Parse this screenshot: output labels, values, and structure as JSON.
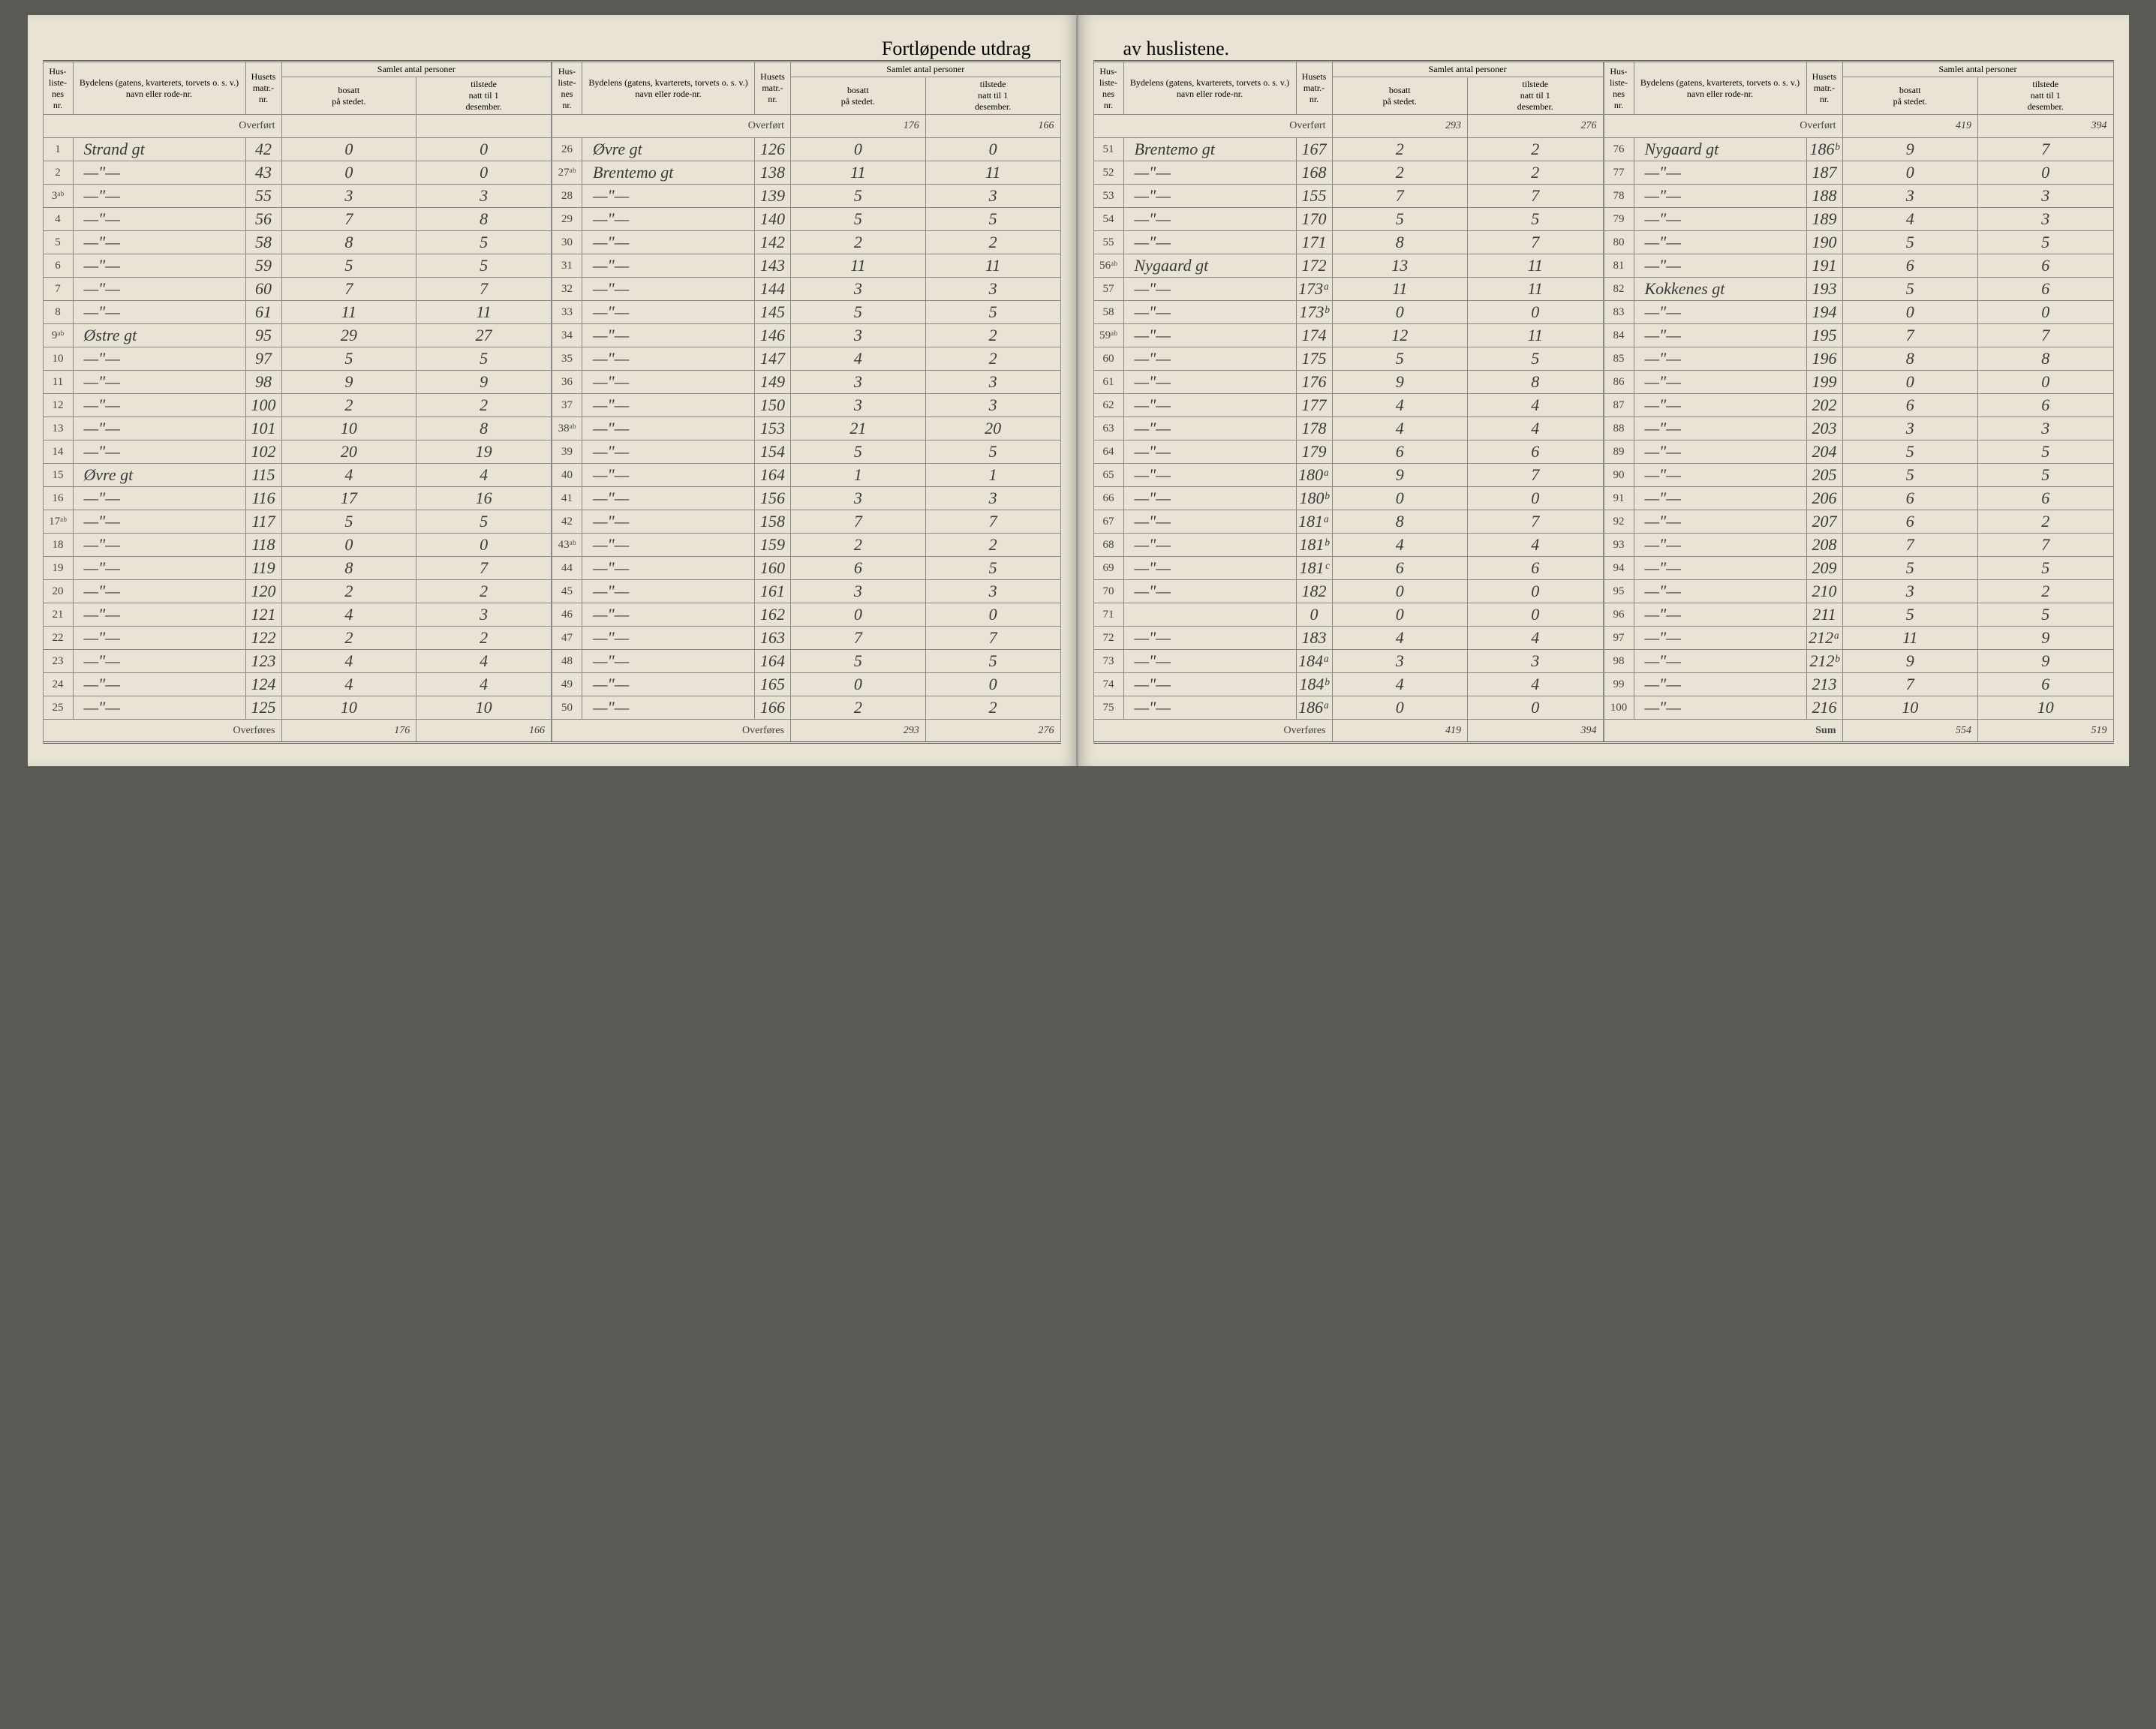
{
  "title_left": "Fortløpende utdrag",
  "title_right": "av huslistene.",
  "headers": {
    "hus_nr": "Hus-\nliste-\nnes\nnr.",
    "bydel": "Bydelens (gatens, kvarterets, torvets o. s. v.) navn eller rode-nr.",
    "matr": "Husets\nmatr.-\nnr.",
    "samlet": "Samlet antal personer",
    "bosatt": "bosatt\npå stedet.",
    "tilstede": "tilstede\nnatt til 1\ndesember."
  },
  "overfort": "Overført",
  "overfores": "Overføres",
  "sum": "Sum",
  "ditto": "— \" —",
  "columns": [
    {
      "overfort_vals": [
        "",
        "",
        ""
      ],
      "rows": [
        {
          "nr": "1",
          "name": "Strand gt",
          "matr": "42",
          "b": "0",
          "t": "0"
        },
        {
          "nr": "2",
          "name": "—\"—",
          "matr": "43",
          "b": "0",
          "t": "0"
        },
        {
          "nr": "3ᵃᵇ",
          "name": "—\"—",
          "matr": "55",
          "b": "3",
          "t": "3"
        },
        {
          "nr": "4",
          "name": "—\"—",
          "matr": "56",
          "b": "7",
          "t": "8"
        },
        {
          "nr": "5",
          "name": "—\"—",
          "matr": "58",
          "b": "8",
          "t": "5"
        },
        {
          "nr": "6",
          "name": "—\"—",
          "matr": "59",
          "b": "5",
          "t": "5"
        },
        {
          "nr": "7",
          "name": "—\"—",
          "matr": "60",
          "b": "7",
          "t": "7"
        },
        {
          "nr": "8",
          "name": "—\"—",
          "matr": "61",
          "b": "11",
          "t": "11"
        },
        {
          "nr": "9ᵃᵇ",
          "name": "Østre gt",
          "matr": "95",
          "b": "29",
          "t": "27"
        },
        {
          "nr": "10",
          "name": "—\"—",
          "matr": "97",
          "b": "5",
          "t": "5"
        },
        {
          "nr": "11",
          "name": "—\"—",
          "matr": "98",
          "b": "9",
          "t": "9"
        },
        {
          "nr": "12",
          "name": "—\"—",
          "matr": "100",
          "b": "2",
          "t": "2"
        },
        {
          "nr": "13",
          "name": "—\"—",
          "matr": "101",
          "b": "10",
          "t": "8"
        },
        {
          "nr": "14",
          "name": "—\"—",
          "matr": "102",
          "b": "20",
          "t": "19"
        },
        {
          "nr": "15",
          "name": "Øvre gt",
          "matr": "115",
          "b": "4",
          "t": "4"
        },
        {
          "nr": "16",
          "name": "—\"—",
          "matr": "116",
          "b": "17",
          "t": "16"
        },
        {
          "nr": "17ᵃᵇ",
          "name": "—\"—",
          "matr": "117",
          "b": "5",
          "t": "5"
        },
        {
          "nr": "18",
          "name": "—\"—",
          "matr": "118",
          "b": "0",
          "t": "0"
        },
        {
          "nr": "19",
          "name": "—\"—",
          "matr": "119",
          "b": "8",
          "t": "7"
        },
        {
          "nr": "20",
          "name": "—\"—",
          "matr": "120",
          "b": "2",
          "t": "2"
        },
        {
          "nr": "21",
          "name": "—\"—",
          "matr": "121",
          "b": "4",
          "t": "3"
        },
        {
          "nr": "22",
          "name": "—\"—",
          "matr": "122",
          "b": "2",
          "t": "2"
        },
        {
          "nr": "23",
          "name": "—\"—",
          "matr": "123",
          "b": "4",
          "t": "4"
        },
        {
          "nr": "24",
          "name": "—\"—",
          "matr": "124",
          "b": "4",
          "t": "4"
        },
        {
          "nr": "25",
          "name": "—\"—",
          "matr": "125",
          "b": "10",
          "t": "10"
        }
      ],
      "overfores_vals": [
        "",
        "176",
        "166"
      ]
    },
    {
      "overfort_vals": [
        "",
        "176",
        "166"
      ],
      "rows": [
        {
          "nr": "26",
          "name": "Øvre gt",
          "matr": "126",
          "b": "0",
          "t": "0"
        },
        {
          "nr": "27ᵃᵇ",
          "name": "Brentemo gt",
          "matr": "138",
          "b": "11",
          "t": "11"
        },
        {
          "nr": "28",
          "name": "—\"—",
          "matr": "139",
          "b": "5",
          "t": "3"
        },
        {
          "nr": "29",
          "name": "—\"—",
          "matr": "140",
          "b": "5",
          "t": "5"
        },
        {
          "nr": "30",
          "name": "—\"—",
          "matr": "142",
          "b": "2",
          "t": "2"
        },
        {
          "nr": "31",
          "name": "—\"—",
          "matr": "143",
          "b": "11",
          "t": "11"
        },
        {
          "nr": "32",
          "name": "—\"—",
          "matr": "144",
          "b": "3",
          "t": "3"
        },
        {
          "nr": "33",
          "name": "—\"—",
          "matr": "145",
          "b": "5",
          "t": "5"
        },
        {
          "nr": "34",
          "name": "—\"—",
          "matr": "146",
          "b": "3",
          "t": "2"
        },
        {
          "nr": "35",
          "name": "—\"—",
          "matr": "147",
          "b": "4",
          "t": "2"
        },
        {
          "nr": "36",
          "name": "—\"—",
          "matr": "149",
          "b": "3",
          "t": "3"
        },
        {
          "nr": "37",
          "name": "—\"—",
          "matr": "150",
          "b": "3",
          "t": "3"
        },
        {
          "nr": "38ᵃᵇ",
          "name": "—\"—",
          "matr": "153",
          "b": "21",
          "t": "20"
        },
        {
          "nr": "39",
          "name": "—\"—",
          "matr": "154",
          "b": "5",
          "t": "5"
        },
        {
          "nr": "40",
          "name": "—\"—",
          "matr": "164",
          "b": "1",
          "t": "1"
        },
        {
          "nr": "41",
          "name": "—\"—",
          "matr": "156",
          "b": "3",
          "t": "3"
        },
        {
          "nr": "42",
          "name": "—\"—",
          "matr": "158",
          "b": "7",
          "t": "7"
        },
        {
          "nr": "43ᵃᵇ",
          "name": "—\"—",
          "matr": "159",
          "b": "2",
          "t": "2"
        },
        {
          "nr": "44",
          "name": "—\"—",
          "matr": "160",
          "b": "6",
          "t": "5"
        },
        {
          "nr": "45",
          "name": "—\"—",
          "matr": "161",
          "b": "3",
          "t": "3"
        },
        {
          "nr": "46",
          "name": "—\"—",
          "matr": "162",
          "b": "0",
          "t": "0"
        },
        {
          "nr": "47",
          "name": "—\"—",
          "matr": "163",
          "b": "7",
          "t": "7"
        },
        {
          "nr": "48",
          "name": "—\"—",
          "matr": "164",
          "b": "5",
          "t": "5"
        },
        {
          "nr": "49",
          "name": "—\"—",
          "matr": "165",
          "b": "0",
          "t": "0"
        },
        {
          "nr": "50",
          "name": "—\"—",
          "matr": "166",
          "b": "2",
          "t": "2"
        }
      ],
      "overfores_vals": [
        "",
        "293",
        "276"
      ]
    },
    {
      "overfort_vals": [
        "",
        "293",
        "276"
      ],
      "rows": [
        {
          "nr": "51",
          "name": "Brentemo gt",
          "matr": "167",
          "b": "2",
          "t": "2"
        },
        {
          "nr": "52",
          "name": "—\"—",
          "matr": "168",
          "b": "2",
          "t": "2"
        },
        {
          "nr": "53",
          "name": "—\"—",
          "matr": "155",
          "b": "7",
          "t": "7"
        },
        {
          "nr": "54",
          "name": "—\"—",
          "matr": "170",
          "b": "5",
          "t": "5"
        },
        {
          "nr": "55",
          "name": "—\"—",
          "matr": "171",
          "b": "8",
          "t": "7"
        },
        {
          "nr": "56ᵃᵇ",
          "name": "Nygaard gt",
          "matr": "172",
          "b": "13",
          "t": "11"
        },
        {
          "nr": "57",
          "name": "—\"—",
          "matr": "173ᵃ",
          "b": "11",
          "t": "11"
        },
        {
          "nr": "58",
          "name": "—\"—",
          "matr": "173ᵇ",
          "b": "0",
          "t": "0"
        },
        {
          "nr": "59ᵃᵇ",
          "name": "—\"—",
          "matr": "174",
          "b": "12",
          "t": "11"
        },
        {
          "nr": "60",
          "name": "—\"—",
          "matr": "175",
          "b": "5",
          "t": "5"
        },
        {
          "nr": "61",
          "name": "—\"—",
          "matr": "176",
          "b": "9",
          "t": "8"
        },
        {
          "nr": "62",
          "name": "—\"—",
          "matr": "177",
          "b": "4",
          "t": "4"
        },
        {
          "nr": "63",
          "name": "—\"—",
          "matr": "178",
          "b": "4",
          "t": "4"
        },
        {
          "nr": "64",
          "name": "—\"—",
          "matr": "179",
          "b": "6",
          "t": "6"
        },
        {
          "nr": "65",
          "name": "—\"—",
          "matr": "180ᵃ",
          "b": "9",
          "t": "7"
        },
        {
          "nr": "66",
          "name": "—\"—",
          "matr": "180ᵇ",
          "b": "0",
          "t": "0"
        },
        {
          "nr": "67",
          "name": "—\"—",
          "matr": "181ᵃ",
          "b": "8",
          "t": "7"
        },
        {
          "nr": "68",
          "name": "—\"—",
          "matr": "181ᵇ",
          "b": "4",
          "t": "4"
        },
        {
          "nr": "69",
          "name": "—\"—",
          "matr": "181ᶜ",
          "b": "6",
          "t": "6"
        },
        {
          "nr": "70",
          "name": "—\"—",
          "matr": "182",
          "b": "0",
          "t": "0"
        },
        {
          "nr": "71",
          "name": "",
          "matr": "0",
          "b": "0",
          "t": "0"
        },
        {
          "nr": "72",
          "name": "—\"—",
          "matr": "183",
          "b": "4",
          "t": "4"
        },
        {
          "nr": "73",
          "name": "—\"—",
          "matr": "184ᵃ",
          "b": "3",
          "t": "3"
        },
        {
          "nr": "74",
          "name": "—\"—",
          "matr": "184ᵇ",
          "b": "4",
          "t": "4"
        },
        {
          "nr": "75",
          "name": "—\"—",
          "matr": "186ᵃ",
          "b": "0",
          "t": "0"
        }
      ],
      "overfores_vals": [
        "",
        "419",
        "394"
      ]
    },
    {
      "overfort_vals": [
        "",
        "419",
        "394"
      ],
      "rows": [
        {
          "nr": "76",
          "name": "Nygaard gt",
          "matr": "186ᵇ",
          "b": "9",
          "t": "7"
        },
        {
          "nr": "77",
          "name": "—\"—",
          "matr": "187",
          "b": "0",
          "t": "0"
        },
        {
          "nr": "78",
          "name": "—\"—",
          "matr": "188",
          "b": "3",
          "t": "3"
        },
        {
          "nr": "79",
          "name": "—\"—",
          "matr": "189",
          "b": "4",
          "t": "3"
        },
        {
          "nr": "80",
          "name": "—\"—",
          "matr": "190",
          "b": "5",
          "t": "5"
        },
        {
          "nr": "81",
          "name": "—\"—",
          "matr": "191",
          "b": "6",
          "t": "6"
        },
        {
          "nr": "82",
          "name": "Kokkenes gt",
          "matr": "193",
          "b": "5",
          "t": "6"
        },
        {
          "nr": "83",
          "name": "—\"—",
          "matr": "194",
          "b": "0",
          "t": "0"
        },
        {
          "nr": "84",
          "name": "—\"—",
          "matr": "195",
          "b": "7",
          "t": "7"
        },
        {
          "nr": "85",
          "name": "—\"—",
          "matr": "196",
          "b": "8",
          "t": "8"
        },
        {
          "nr": "86",
          "name": "—\"—",
          "matr": "199",
          "b": "0",
          "t": "0"
        },
        {
          "nr": "87",
          "name": "—\"—",
          "matr": "202",
          "b": "6",
          "t": "6"
        },
        {
          "nr": "88",
          "name": "—\"—",
          "matr": "203",
          "b": "3",
          "t": "3"
        },
        {
          "nr": "89",
          "name": "—\"—",
          "matr": "204",
          "b": "5",
          "t": "5"
        },
        {
          "nr": "90",
          "name": "—\"—",
          "matr": "205",
          "b": "5",
          "t": "5"
        },
        {
          "nr": "91",
          "name": "—\"—",
          "matr": "206",
          "b": "6",
          "t": "6"
        },
        {
          "nr": "92",
          "name": "—\"—",
          "matr": "207",
          "b": "6",
          "t": "2"
        },
        {
          "nr": "93",
          "name": "—\"—",
          "matr": "208",
          "b": "7",
          "t": "7"
        },
        {
          "nr": "94",
          "name": "—\"—",
          "matr": "209",
          "b": "5",
          "t": "5"
        },
        {
          "nr": "95",
          "name": "—\"—",
          "matr": "210",
          "b": "3",
          "t": "2"
        },
        {
          "nr": "96",
          "name": "—\"—",
          "matr": "211",
          "b": "5",
          "t": "5"
        },
        {
          "nr": "97",
          "name": "—\"—",
          "matr": "212ᵃ",
          "b": "11",
          "t": "9"
        },
        {
          "nr": "98",
          "name": "—\"—",
          "matr": "212ᵇ",
          "b": "9",
          "t": "9"
        },
        {
          "nr": "99",
          "name": "—\"—",
          "matr": "213",
          "b": "7",
          "t": "6"
        },
        {
          "nr": "100",
          "name": "—\"—",
          "matr": "216",
          "b": "10",
          "t": "10"
        }
      ],
      "overfores_vals": [
        "",
        "554",
        "519"
      ],
      "is_sum": true
    }
  ]
}
